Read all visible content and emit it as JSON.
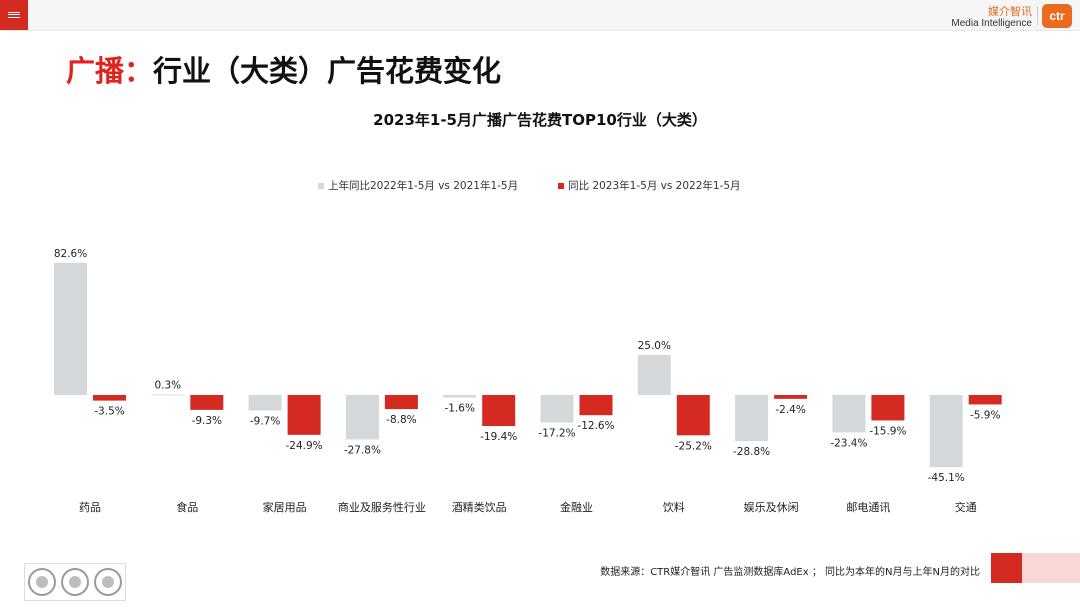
{
  "header": {
    "menu_icon": "hamburger-menu-icon",
    "brand_cn": "媒介智讯",
    "brand_en": "Media Intelligence",
    "logo_text": "ctr"
  },
  "page": {
    "title_accent": "广播：",
    "title_rest": "行业（大类）广告花费变化"
  },
  "colors": {
    "accent_red": "#d42a21",
    "series_gray": "#d4d8da",
    "series_red": "#d42a21"
  },
  "chart_data": {
    "type": "bar",
    "title": "2023年1-5月广播广告花费TOP10行业（大类）",
    "legend_position": "top-center",
    "grid": false,
    "categories": [
      "药品",
      "食品",
      "家居用品",
      "商业及服务性行业",
      "酒精类饮品",
      "金融业",
      "饮料",
      "娱乐及休闲",
      "邮电通讯",
      "交通"
    ],
    "series": [
      {
        "name": "上年同比2022年1-5月  vs  2021年1-5月",
        "color": "#d4d8da",
        "values": [
          82.6,
          0.3,
          -9.7,
          -27.8,
          -1.6,
          -17.2,
          25.0,
          -28.8,
          -23.4,
          -45.1
        ],
        "labels": [
          "82.6%",
          "0.3%",
          "-9.7%",
          "-27.8%",
          "-1.6%",
          "-17.2%",
          "25.0%",
          "-28.8%",
          "-23.4%",
          "-45.1%"
        ]
      },
      {
        "name": "同比 2023年1-5月  vs  2022年1-5月",
        "color": "#d42a21",
        "values": [
          -3.5,
          -9.3,
          -24.9,
          -8.8,
          -19.4,
          -12.6,
          -25.2,
          -2.4,
          -15.9,
          -5.9
        ],
        "labels": [
          "-3.5%",
          "-9.3%",
          "-24.9%",
          "-8.8%",
          "-19.4%",
          "-12.6%",
          "-25.2%",
          "-2.4%",
          "-15.9%",
          "-5.9%"
        ]
      }
    ]
  },
  "footer": {
    "source": "数据来源：CTR媒介智讯 广告监测数据库AdEx ；  同比为本年的N月与上年N月的对比",
    "cert_icon": "sgs-certification-badge-icon"
  }
}
